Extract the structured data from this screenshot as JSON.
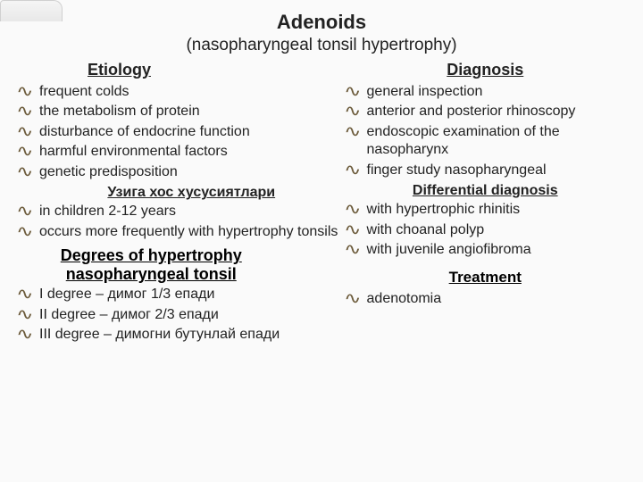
{
  "title": "Adenoids",
  "subtitle": "(nasopharyngeal tonsil hypertrophy)",
  "colors": {
    "text": "#222222",
    "bullet": "#6b5a3a",
    "background": "#fafafa"
  },
  "left": {
    "etiology_head": "Etiology",
    "etiology_items": [
      "frequent colds",
      "the metabolism of protein",
      "disturbance of endocrine function",
      "harmful environmental factors",
      "genetic predisposition"
    ],
    "own_features_head": "Узига хос хусусиятлари",
    "own_features_items": [
      "in children 2-12 years",
      "occurs more frequently with hypertrophy tonsils"
    ],
    "degrees_head_1": "Degrees of hypertrophy",
    "degrees_head_2": "nasopharyngeal tonsil",
    "degrees_items": [
      "I degree – димог 1/3 епади",
      "II degree – димог 2/3 епади",
      "III degree – димогни бутунлай епади"
    ]
  },
  "right": {
    "diagnosis_head": "Diagnosis",
    "diagnosis_items": [
      "general inspection",
      "anterior and posterior rhinoscopy",
      "endoscopic examination of the nasopharynx",
      "finger study nasopharyngeal"
    ],
    "diff_head": "Differential diagnosis",
    "diff_items": [
      "with hypertrophic rhinitis",
      "with choanal polyp",
      "with juvenile angiofibroma"
    ],
    "treatment_head": "Treatment",
    "treatment_items": [
      "adenotomia"
    ]
  }
}
